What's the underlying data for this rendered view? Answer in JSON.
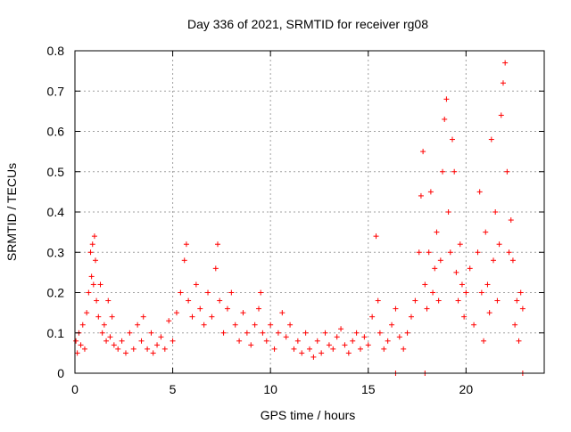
{
  "chart_data": {
    "type": "scatter",
    "title": "Day 336 of 2021, SRMTID for receiver rg08",
    "xlabel": "GPS time / hours",
    "ylabel": "SRMTID / TECUs",
    "xlim": [
      0,
      24
    ],
    "ylim": [
      0,
      0.8
    ],
    "grid": true,
    "legend": "none",
    "marker": "+",
    "colors": {
      "series": "#ff0000",
      "grid": "#a0a0a0",
      "axis": "#000000"
    },
    "x_ticks": [
      {
        "value": 0,
        "label": "0"
      },
      {
        "value": 5,
        "label": "5"
      },
      {
        "value": 10,
        "label": "10"
      },
      {
        "value": 15,
        "label": "15"
      },
      {
        "value": 20,
        "label": "20"
      }
    ],
    "y_ticks": [
      {
        "value": 0,
        "label": "0"
      },
      {
        "value": 0.1,
        "label": "0.1"
      },
      {
        "value": 0.2,
        "label": "0.2"
      },
      {
        "value": 0.3,
        "label": "0.3"
      },
      {
        "value": 0.4,
        "label": "0.4"
      },
      {
        "value": 0.5,
        "label": "0.5"
      },
      {
        "value": 0.6,
        "label": "0.6"
      },
      {
        "value": 0.7,
        "label": "0.7"
      },
      {
        "value": 0.8,
        "label": "0.8"
      }
    ],
    "series": [
      {
        "name": "SRMTID",
        "color": "#ff0000",
        "points": [
          [
            0.05,
            0.08
          ],
          [
            0.12,
            0.05
          ],
          [
            0.2,
            0.1
          ],
          [
            0.3,
            0.07
          ],
          [
            0.4,
            0.12
          ],
          [
            0.5,
            0.06
          ],
          [
            0.6,
            0.15
          ],
          [
            0.7,
            0.2
          ],
          [
            0.8,
            0.3
          ],
          [
            0.85,
            0.24
          ],
          [
            0.9,
            0.32
          ],
          [
            0.95,
            0.22
          ],
          [
            1.0,
            0.34
          ],
          [
            1.05,
            0.28
          ],
          [
            1.1,
            0.18
          ],
          [
            1.2,
            0.14
          ],
          [
            1.3,
            0.22
          ],
          [
            1.4,
            0.1
          ],
          [
            1.5,
            0.12
          ],
          [
            1.6,
            0.08
          ],
          [
            1.7,
            0.18
          ],
          [
            1.8,
            0.09
          ],
          [
            1.9,
            0.14
          ],
          [
            2.0,
            0.07
          ],
          [
            2.2,
            0.06
          ],
          [
            2.4,
            0.08
          ],
          [
            2.6,
            0.05
          ],
          [
            2.8,
            0.1
          ],
          [
            3.0,
            0.06
          ],
          [
            3.2,
            0.12
          ],
          [
            3.4,
            0.08
          ],
          [
            3.5,
            0.14
          ],
          [
            3.7,
            0.06
          ],
          [
            3.9,
            0.1
          ],
          [
            4.0,
            0.05
          ],
          [
            4.2,
            0.07
          ],
          [
            4.4,
            0.09
          ],
          [
            4.6,
            0.06
          ],
          [
            4.8,
            0.13
          ],
          [
            5.0,
            0.08
          ],
          [
            5.2,
            0.15
          ],
          [
            5.4,
            0.2
          ],
          [
            5.6,
            0.28
          ],
          [
            5.7,
            0.32
          ],
          [
            5.8,
            0.18
          ],
          [
            6.0,
            0.14
          ],
          [
            6.2,
            0.22
          ],
          [
            6.4,
            0.16
          ],
          [
            6.6,
            0.12
          ],
          [
            6.8,
            0.2
          ],
          [
            7.0,
            0.14
          ],
          [
            7.2,
            0.26
          ],
          [
            7.3,
            0.32
          ],
          [
            7.4,
            0.18
          ],
          [
            7.6,
            0.1
          ],
          [
            7.8,
            0.16
          ],
          [
            8.0,
            0.2
          ],
          [
            8.2,
            0.12
          ],
          [
            8.4,
            0.08
          ],
          [
            8.6,
            0.15
          ],
          [
            8.8,
            0.1
          ],
          [
            9.0,
            0.07
          ],
          [
            9.2,
            0.12
          ],
          [
            9.4,
            0.16
          ],
          [
            9.5,
            0.2
          ],
          [
            9.6,
            0.1
          ],
          [
            9.8,
            0.08
          ],
          [
            10.0,
            0.12
          ],
          [
            10.2,
            0.06
          ],
          [
            10.4,
            0.1
          ],
          [
            10.6,
            0.15
          ],
          [
            10.8,
            0.09
          ],
          [
            11.0,
            0.12
          ],
          [
            11.2,
            0.06
          ],
          [
            11.4,
            0.08
          ],
          [
            11.6,
            0.05
          ],
          [
            11.8,
            0.1
          ],
          [
            12.0,
            0.06
          ],
          [
            12.2,
            0.04
          ],
          [
            12.4,
            0.08
          ],
          [
            12.6,
            0.05
          ],
          [
            12.8,
            0.1
          ],
          [
            13.0,
            0.07
          ],
          [
            13.2,
            0.06
          ],
          [
            13.4,
            0.09
          ],
          [
            13.6,
            0.11
          ],
          [
            13.8,
            0.07
          ],
          [
            14.0,
            0.05
          ],
          [
            14.2,
            0.08
          ],
          [
            14.4,
            0.1
          ],
          [
            14.6,
            0.06
          ],
          [
            14.8,
            0.09
          ],
          [
            15.0,
            0.07
          ],
          [
            15.2,
            0.14
          ],
          [
            15.4,
            0.34
          ],
          [
            15.5,
            0.18
          ],
          [
            15.6,
            0.1
          ],
          [
            15.8,
            0.06
          ],
          [
            16.0,
            0.08
          ],
          [
            16.2,
            0.12
          ],
          [
            16.4,
            0.16
          ],
          [
            16.6,
            0.09
          ],
          [
            16.8,
            0.06
          ],
          [
            17.0,
            0.1
          ],
          [
            17.2,
            0.14
          ],
          [
            17.4,
            0.18
          ],
          [
            17.6,
            0.3
          ],
          [
            17.7,
            0.44
          ],
          [
            17.8,
            0.55
          ],
          [
            17.9,
            0.22
          ],
          [
            18.0,
            0.16
          ],
          [
            18.1,
            0.3
          ],
          [
            18.2,
            0.45
          ],
          [
            18.3,
            0.2
          ],
          [
            18.4,
            0.26
          ],
          [
            18.5,
            0.35
          ],
          [
            18.6,
            0.18
          ],
          [
            18.7,
            0.28
          ],
          [
            18.8,
            0.5
          ],
          [
            18.9,
            0.63
          ],
          [
            19.0,
            0.68
          ],
          [
            19.1,
            0.4
          ],
          [
            19.2,
            0.3
          ],
          [
            19.3,
            0.58
          ],
          [
            19.4,
            0.5
          ],
          [
            19.5,
            0.25
          ],
          [
            19.6,
            0.18
          ],
          [
            19.7,
            0.32
          ],
          [
            19.8,
            0.22
          ],
          [
            19.9,
            0.14
          ],
          [
            20.0,
            0.2
          ],
          [
            20.2,
            0.26
          ],
          [
            20.4,
            0.12
          ],
          [
            20.6,
            0.3
          ],
          [
            20.7,
            0.45
          ],
          [
            20.8,
            0.2
          ],
          [
            20.9,
            0.08
          ],
          [
            21.0,
            0.35
          ],
          [
            21.1,
            0.22
          ],
          [
            21.2,
            0.15
          ],
          [
            21.3,
            0.58
          ],
          [
            21.4,
            0.28
          ],
          [
            21.5,
            0.4
          ],
          [
            21.6,
            0.18
          ],
          [
            21.7,
            0.32
          ],
          [
            21.8,
            0.64
          ],
          [
            21.9,
            0.72
          ],
          [
            22.0,
            0.77
          ],
          [
            22.1,
            0.5
          ],
          [
            22.2,
            0.3
          ],
          [
            22.3,
            0.38
          ],
          [
            22.4,
            0.28
          ],
          [
            22.5,
            0.12
          ],
          [
            22.6,
            0.18
          ],
          [
            22.7,
            0.08
          ],
          [
            22.8,
            0.2
          ],
          [
            22.9,
            0.16
          ],
          [
            16.4,
            0.0
          ],
          [
            17.9,
            0.0
          ],
          [
            22.9,
            0.0
          ]
        ]
      }
    ]
  }
}
